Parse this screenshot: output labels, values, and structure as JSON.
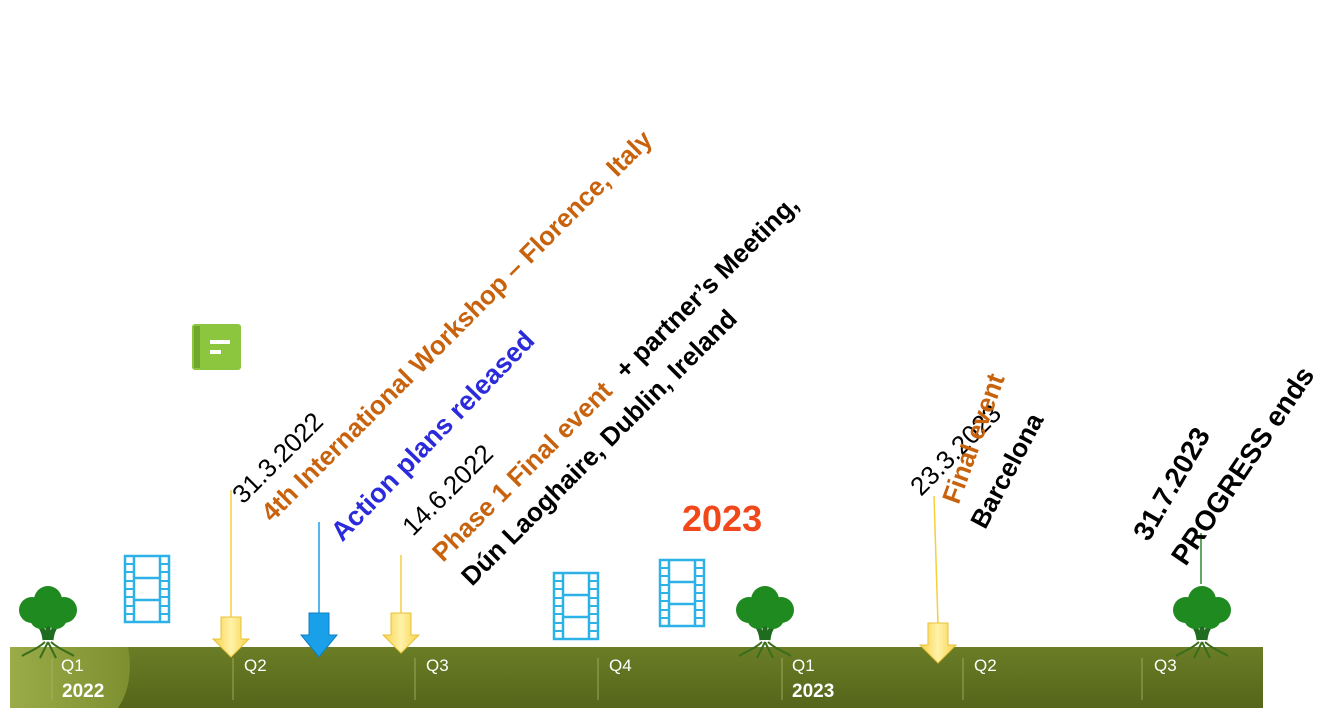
{
  "colors": {
    "timeline_bar": "#5e6f1f",
    "timeline_start": "#8c9a3c",
    "event_orange": "#c8620c",
    "event_blue": "#2b2bdb",
    "year_highlight": "#f0481a",
    "yellow_arrow": "#ffe066",
    "blue_arrow": "#1aa0e8",
    "film_icon": "#2db2e8",
    "document_icon": "#8cc63f",
    "tree": "#1f8a1f"
  },
  "timeline": {
    "quarters": [
      "Q1",
      "Q2",
      "Q3",
      "Q4",
      "Q1",
      "Q2",
      "Q3"
    ],
    "years": [
      "2022",
      "2023"
    ]
  },
  "year_highlight": "2023",
  "events": [
    {
      "date": "31.3.2022",
      "lines": [
        [
          {
            "text": "4th International Workshop – Florence, Italy",
            "style": "orange"
          }
        ]
      ]
    },
    {
      "date": "",
      "lines": [
        [
          {
            "text": "Action plans released",
            "style": "blue"
          }
        ]
      ]
    },
    {
      "date": "14.6.2022",
      "lines": [
        [
          {
            "text": "Phase 1 Final event",
            "style": "orange"
          },
          {
            "text": " + partner’s Meeting,",
            "style": "black"
          }
        ],
        [
          {
            "text": "Dún Laoghaire, Dublin, Ireland",
            "style": "black"
          }
        ]
      ]
    },
    {
      "date": "23.3.2023",
      "lines": [
        [
          {
            "text": "Final event",
            "style": "orange"
          }
        ],
        [
          {
            "text": "Barcelona",
            "style": "black"
          }
        ]
      ]
    },
    {
      "date": "",
      "lines": [
        [
          {
            "text": "31.7.2023",
            "style": "black"
          }
        ],
        [
          {
            "text": "PROGRESS ends",
            "style": "black"
          }
        ]
      ]
    }
  ],
  "icons": [
    "document-icon",
    "film-icon",
    "film-icon",
    "film-icon",
    "tree-icon",
    "tree-icon",
    "tree-icon",
    "down-arrow-icon"
  ]
}
